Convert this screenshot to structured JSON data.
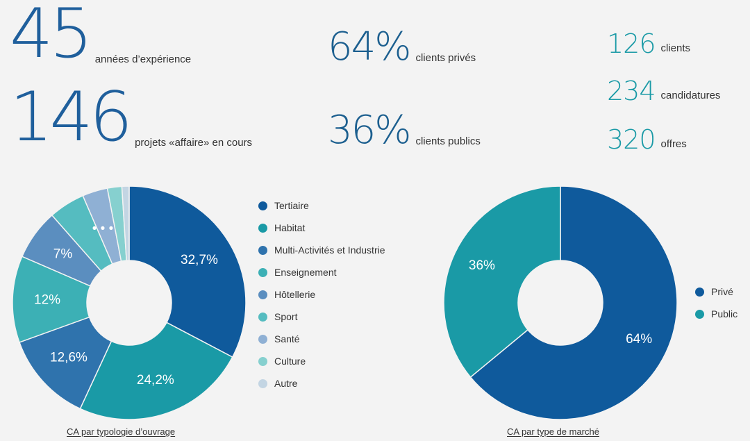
{
  "stats": {
    "years": {
      "value": "45",
      "label": "années d’expérience"
    },
    "projects": {
      "value": "146",
      "label": "projets «affaire» en cours"
    },
    "private_pct": {
      "value": "64%",
      "label": "clients privés"
    },
    "public_pct": {
      "value": "36%",
      "label": "clients publics"
    },
    "clients": {
      "value": "126",
      "label": "clients"
    },
    "applications": {
      "value": "234",
      "label": "candidatures"
    },
    "offers": {
      "value": "320",
      "label": "offres"
    }
  },
  "colors": {
    "dark_blue": "#0f5a9c",
    "teal": "#1a9aa6",
    "mid_blue": "#2f73ad",
    "light_teal": "#3cb0b5",
    "slate_blue": "#5b8ebf",
    "aqua": "#55bcc0",
    "pale_blue": "#8fb0d4",
    "pale_teal": "#86d0cf",
    "pale_grey": "#c3d5e3"
  },
  "chart_data": [
    {
      "type": "pie",
      "donut": true,
      "caption": "CA par typologie d’ouvrage",
      "categories": [
        "Tertiaire",
        "Habitat",
        "Multi-Activités et Industrie",
        "Enseignement",
        "Hôtellerie",
        "Sport",
        "Santé",
        "Culture",
        "Autre"
      ],
      "values": [
        32.7,
        24.2,
        12.6,
        12,
        7,
        5,
        3.5,
        2,
        1
      ],
      "slice_labels": [
        "32,7%",
        "24,2%",
        "12,6%",
        "12%",
        "7%",
        "",
        "",
        "",
        ""
      ],
      "ellipsis_label": "• • •",
      "colors": [
        "#0f5a9c",
        "#1a9aa6",
        "#2f73ad",
        "#3cb0b5",
        "#5b8ebf",
        "#55bcc0",
        "#8fb0d4",
        "#86d0cf",
        "#c3d5e3"
      ],
      "legend_placement": "right"
    },
    {
      "type": "pie",
      "donut": true,
      "caption": "CA par type de marché",
      "categories": [
        "Privé",
        "Public"
      ],
      "values": [
        64,
        36
      ],
      "slice_labels": [
        "64%",
        "36%"
      ],
      "colors": [
        "#0f5a9c",
        "#1a9aa6"
      ],
      "legend_placement": "right"
    }
  ]
}
